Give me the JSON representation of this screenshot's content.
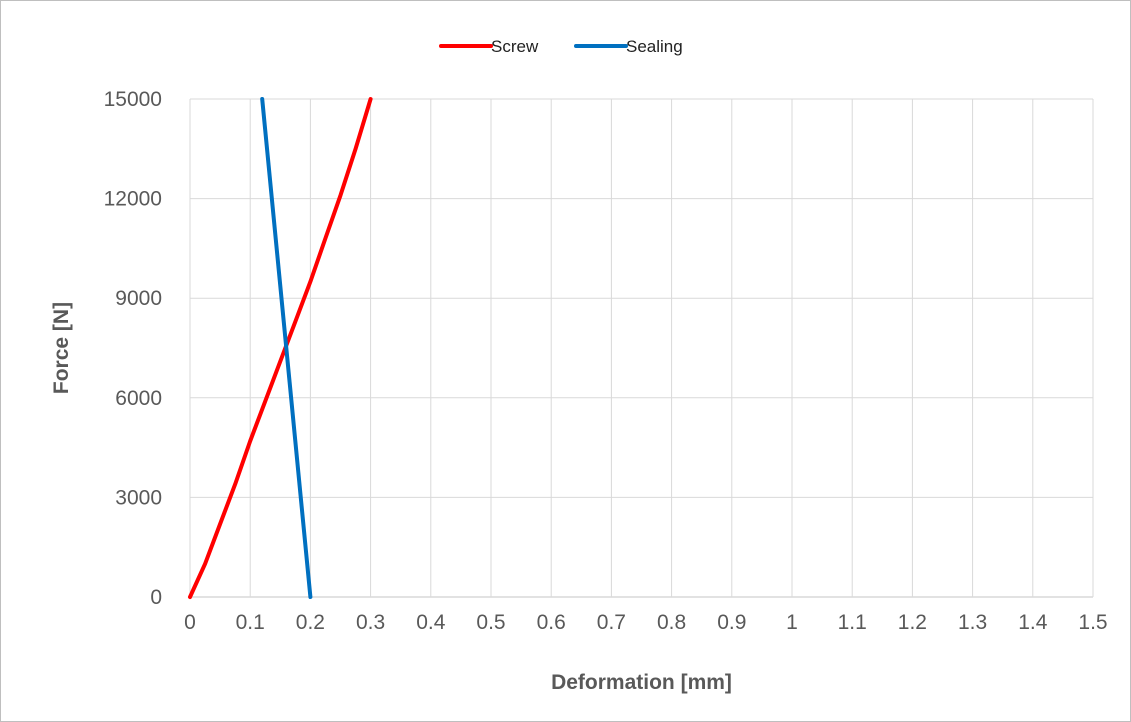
{
  "chart_data": {
    "type": "line",
    "title": "",
    "xlabel": "Deformation [mm]",
    "ylabel": "Force [N]",
    "xlim": [
      0,
      1.5
    ],
    "ylim": [
      0,
      15000
    ],
    "x_ticks": [
      "0",
      "0.1",
      "0.2",
      "0.3",
      "0.4",
      "0.5",
      "0.6",
      "0.7",
      "0.8",
      "0.9",
      "1",
      "1.1",
      "1.2",
      "1.3",
      "1.4",
      "1.5"
    ],
    "y_ticks": [
      "0",
      "3000",
      "6000",
      "9000",
      "12000",
      "15000"
    ],
    "grid": true,
    "legend_position": "top-center",
    "series": [
      {
        "name": "Screw",
        "color": "#ff0000",
        "points": [
          [
            0,
            0
          ],
          [
            0.025,
            1000
          ],
          [
            0.05,
            2200
          ],
          [
            0.075,
            3400
          ],
          [
            0.1,
            4700
          ],
          [
            0.125,
            5900
          ],
          [
            0.15,
            7100
          ],
          [
            0.175,
            8300
          ],
          [
            0.2,
            9500
          ],
          [
            0.225,
            10800
          ],
          [
            0.25,
            12100
          ],
          [
            0.275,
            13500
          ],
          [
            0.3,
            15000
          ]
        ]
      },
      {
        "name": "Sealing",
        "color": "#0070c0",
        "points": [
          [
            0.2,
            0
          ],
          [
            0.12,
            15000
          ]
        ]
      }
    ]
  }
}
